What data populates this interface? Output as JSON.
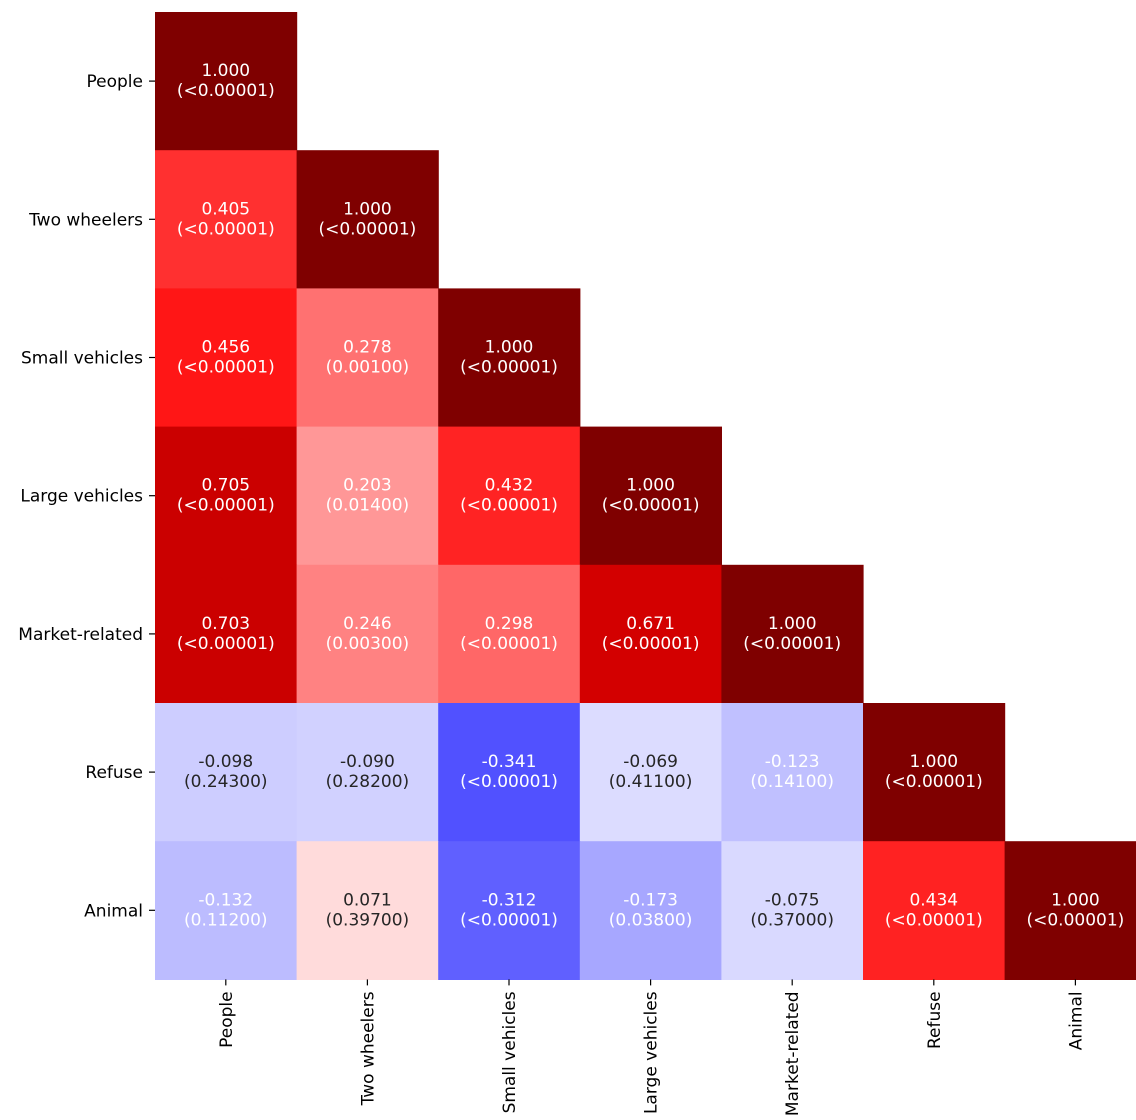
{
  "chart_data": {
    "type": "heatmap",
    "title": "",
    "xlabel": "",
    "ylabel": "",
    "categories": [
      "People",
      "Two wheelers",
      "Small vehicles",
      "Large vehicles",
      "Market-related",
      "Refuse",
      "Animal"
    ],
    "matrix_shape": "lower-triangular",
    "color_scale": "seismic (blue negative, white zero, dark red positive)",
    "colorbar": false,
    "cells": [
      {
        "row": 0,
        "col": 0,
        "value": 1.0,
        "p_label": "(<0.00001)"
      },
      {
        "row": 1,
        "col": 0,
        "value": 0.405,
        "p_label": "(<0.00001)"
      },
      {
        "row": 1,
        "col": 1,
        "value": 1.0,
        "p_label": "(<0.00001)"
      },
      {
        "row": 2,
        "col": 0,
        "value": 0.456,
        "p_label": "(<0.00001)"
      },
      {
        "row": 2,
        "col": 1,
        "value": 0.278,
        "p_label": "(0.00100)"
      },
      {
        "row": 2,
        "col": 2,
        "value": 1.0,
        "p_label": "(<0.00001)"
      },
      {
        "row": 3,
        "col": 0,
        "value": 0.705,
        "p_label": "(<0.00001)"
      },
      {
        "row": 3,
        "col": 1,
        "value": 0.203,
        "p_label": "(0.01400)"
      },
      {
        "row": 3,
        "col": 2,
        "value": 0.432,
        "p_label": "(<0.00001)"
      },
      {
        "row": 3,
        "col": 3,
        "value": 1.0,
        "p_label": "(<0.00001)"
      },
      {
        "row": 4,
        "col": 0,
        "value": 0.703,
        "p_label": "(<0.00001)"
      },
      {
        "row": 4,
        "col": 1,
        "value": 0.246,
        "p_label": "(0.00300)"
      },
      {
        "row": 4,
        "col": 2,
        "value": 0.298,
        "p_label": "(<0.00001)"
      },
      {
        "row": 4,
        "col": 3,
        "value": 0.671,
        "p_label": "(<0.00001)"
      },
      {
        "row": 4,
        "col": 4,
        "value": 1.0,
        "p_label": "(<0.00001)"
      },
      {
        "row": 5,
        "col": 0,
        "value": -0.098,
        "p_label": "(0.24300)"
      },
      {
        "row": 5,
        "col": 1,
        "value": -0.09,
        "p_label": "(0.28200)"
      },
      {
        "row": 5,
        "col": 2,
        "value": -0.341,
        "p_label": "(<0.00001)"
      },
      {
        "row": 5,
        "col": 3,
        "value": -0.069,
        "p_label": "(0.41100)"
      },
      {
        "row": 5,
        "col": 4,
        "value": -0.123,
        "p_label": "(0.14100)"
      },
      {
        "row": 5,
        "col": 5,
        "value": 1.0,
        "p_label": "(<0.00001)"
      },
      {
        "row": 6,
        "col": 0,
        "value": -0.132,
        "p_label": "(0.11200)"
      },
      {
        "row": 6,
        "col": 1,
        "value": 0.071,
        "p_label": "(0.39700)"
      },
      {
        "row": 6,
        "col": 2,
        "value": -0.312,
        "p_label": "(<0.00001)"
      },
      {
        "row": 6,
        "col": 3,
        "value": -0.173,
        "p_label": "(0.03800)"
      },
      {
        "row": 6,
        "col": 4,
        "value": -0.075,
        "p_label": "(0.37000)"
      },
      {
        "row": 6,
        "col": 5,
        "value": 0.434,
        "p_label": "(<0.00001)"
      },
      {
        "row": 6,
        "col": 6,
        "value": 1.0,
        "p_label": "(<0.00001)"
      }
    ]
  }
}
